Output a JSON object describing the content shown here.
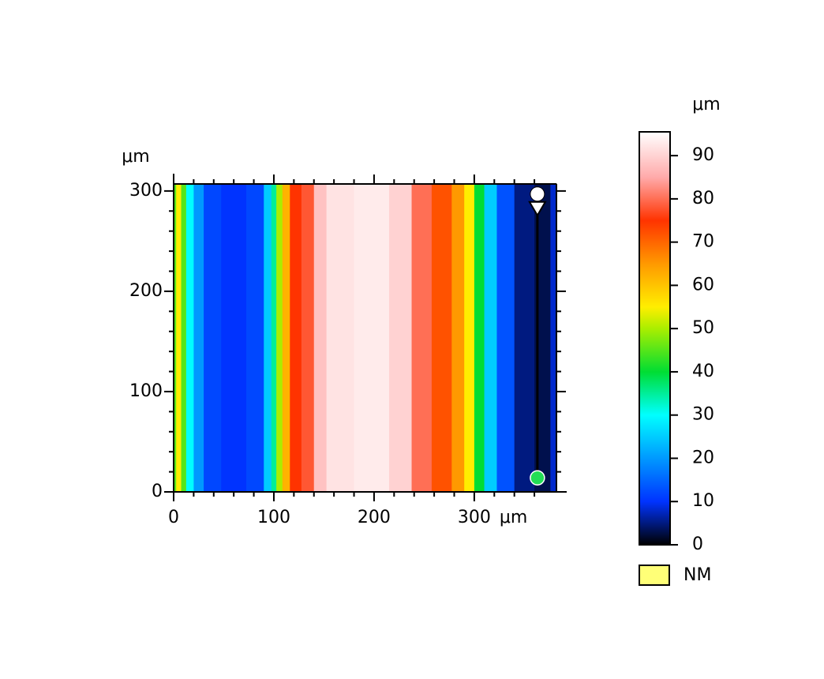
{
  "chart_data": {
    "type": "heightmap",
    "x_unit": "μm",
    "y_unit": "μm",
    "colorbar_unit": "μm",
    "xlim": [
      0,
      382
    ],
    "ylim": [
      0,
      307
    ],
    "xticks": [
      0,
      100,
      200,
      300
    ],
    "yticks": [
      0,
      100,
      200,
      300
    ],
    "x_minor_ticks": [
      20,
      40,
      60,
      80,
      120,
      140,
      160,
      180,
      220,
      240,
      260,
      280,
      320,
      340,
      360
    ],
    "y_minor_ticks": [
      20,
      40,
      60,
      80,
      120,
      140,
      160,
      180,
      220,
      240,
      260,
      280
    ],
    "profile": {
      "x": [
        0,
        5,
        10,
        15,
        25,
        35,
        60,
        85,
        95,
        100,
        105,
        112,
        120,
        135,
        145,
        160,
        200,
        230,
        245,
        270,
        285,
        295,
        305,
        315,
        330,
        350,
        370,
        382
      ],
      "values": [
        45,
        55,
        45,
        30,
        20,
        12,
        10,
        12,
        25,
        35,
        50,
        62,
        75,
        78,
        88,
        92,
        93,
        90,
        80,
        72,
        65,
        55,
        40,
        25,
        13,
        5,
        3,
        8
      ]
    },
    "colorbar": {
      "lim": [
        0,
        95.5
      ],
      "ticks": [
        0,
        10,
        20,
        30,
        40,
        50,
        60,
        70,
        80,
        90
      ],
      "colormap": [
        {
          "value": 0,
          "color": "#000000"
        },
        {
          "value": 5,
          "color": "#001a80"
        },
        {
          "value": 10,
          "color": "#0033ff"
        },
        {
          "value": 20,
          "color": "#0099ff"
        },
        {
          "value": 30,
          "color": "#00ffff"
        },
        {
          "value": 40,
          "color": "#00dd33"
        },
        {
          "value": 50,
          "color": "#aaee00"
        },
        {
          "value": 55,
          "color": "#ffee00"
        },
        {
          "value": 65,
          "color": "#ff9900"
        },
        {
          "value": 75,
          "color": "#ff3300"
        },
        {
          "value": 85,
          "color": "#ffaaaa"
        },
        {
          "value": 95.5,
          "color": "#ffffff"
        }
      ]
    },
    "profile_line": {
      "x": 363,
      "y_start": 14,
      "y_end": 297,
      "y_marker": 282
    },
    "legend": {
      "label": "NM",
      "color": "#ffff77"
    }
  }
}
